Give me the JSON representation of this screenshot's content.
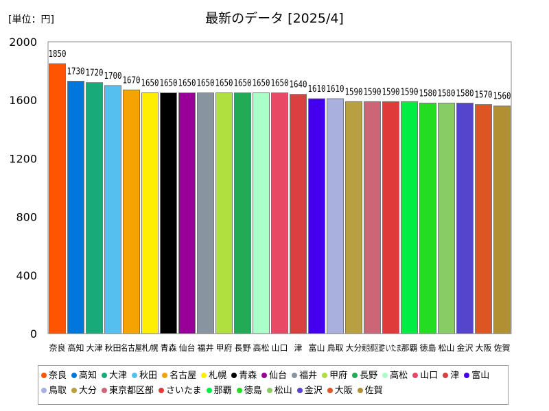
{
  "header": {
    "unit_label": "[単位：円]",
    "title": "最新のデータ [2025/4]"
  },
  "chart_data": {
    "type": "bar",
    "ylim": [
      0,
      2000
    ],
    "yticks": [
      0,
      400,
      800,
      1200,
      1600,
      2000
    ],
    "grid": false,
    "legend_position": "bottom",
    "categories": [
      "奈良",
      "高知",
      "大津",
      "秋田",
      "名古屋",
      "札幌",
      "青森",
      "仙台",
      "福井",
      "甲府",
      "長野",
      "高松",
      "山口",
      "津",
      "富山",
      "鳥取",
      "大分",
      "東京都区部",
      "さいたま",
      "那覇",
      "徳島",
      "松山",
      "金沢",
      "大阪",
      "佐賀"
    ],
    "values": [
      1850,
      1730,
      1720,
      1700,
      1670,
      1650,
      1650,
      1650,
      1650,
      1650,
      1650,
      1650,
      1650,
      1640,
      1610,
      1610,
      1590,
      1590,
      1590,
      1590,
      1580,
      1580,
      1580,
      1570,
      1560
    ],
    "value_labels": [
      "1850",
      "1730",
      "1720",
      "1700",
      "1670",
      "1650",
      "1650",
      "1650",
      "1650",
      "1650",
      "1650",
      "1650",
      "1650",
      "1640",
      "1610",
      "1610",
      "1590",
      "1590",
      "1590",
      "1590",
      "1580",
      "1580",
      "1580",
      "1570",
      "1560"
    ],
    "x_labels": [
      "奈良",
      "高知",
      "大津",
      "秋田",
      "名古屋",
      "札幌",
      "青森",
      "仙台",
      "福井",
      "甲府",
      "長野",
      "高松",
      "山口",
      "津",
      "富山",
      "鳥取",
      "大分",
      "東京都区部",
      "さいたま",
      "那覇",
      "徳島",
      "松山",
      "金沢",
      "大阪",
      "佐賀"
    ],
    "colors": [
      "#ff5500",
      "#0077dd",
      "#19aa7a",
      "#55c0f0",
      "#f5a300",
      "#ffee00",
      "#000000",
      "#990099",
      "#8895a0",
      "#b0e040",
      "#22aa55",
      "#aaffc8",
      "#e84a66",
      "#d94040",
      "#4400ee",
      "#aab0dd",
      "#b8a040",
      "#cc6677",
      "#e03a3a",
      "#00ee44",
      "#22dd22",
      "#88cc66",
      "#5544cc",
      "#dd5522",
      "#b09030"
    ]
  }
}
